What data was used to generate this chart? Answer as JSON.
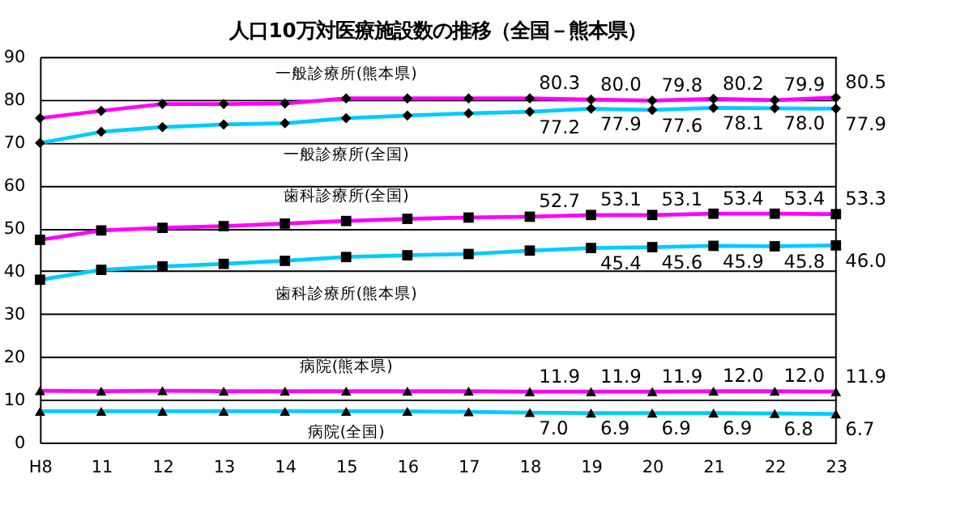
{
  "chart_data": {
    "type": "line",
    "title": "人口10万対医療施設数の推移（全国－熊本県）",
    "categories": [
      "H8",
      "11",
      "12",
      "13",
      "14",
      "15",
      "16",
      "17",
      "18",
      "19",
      "20",
      "21",
      "22",
      "23"
    ],
    "ylim": [
      0,
      90
    ],
    "yticks": [
      0,
      10,
      20,
      30,
      40,
      50,
      60,
      70,
      80,
      90
    ],
    "grid": "y",
    "legend": false,
    "line_style": "solid",
    "series": [
      {
        "name": "一般診療所(熊本県)",
        "color": "#ff00ff",
        "marker": "diamond",
        "values": [
          75.7,
          77.4,
          79.0,
          79.0,
          79.1,
          80.3,
          80.3,
          80.3,
          80.3,
          80.0,
          79.8,
          80.2,
          79.9,
          80.5
        ],
        "value_labels": [
          null,
          null,
          null,
          null,
          null,
          null,
          null,
          null,
          "80.3",
          "80.0",
          "79.8",
          "80.2",
          "79.9",
          "80.5"
        ]
      },
      {
        "name": "一般診療所(全国)",
        "color": "#00ccff",
        "marker": "diamond",
        "values": [
          69.9,
          72.5,
          73.6,
          74.2,
          74.5,
          75.7,
          76.3,
          76.8,
          77.2,
          77.9,
          77.6,
          78.1,
          78.0,
          77.9
        ],
        "value_labels": [
          null,
          null,
          null,
          null,
          null,
          null,
          null,
          null,
          "77.2",
          "77.9",
          "77.6",
          "78.1",
          "78.0",
          "77.9"
        ]
      },
      {
        "name": "歯科診療所(全国)",
        "color": "#ff00ff",
        "marker": "square",
        "values": [
          47.3,
          49.5,
          50.1,
          50.5,
          51.1,
          51.7,
          52.2,
          52.5,
          52.7,
          53.1,
          53.1,
          53.4,
          53.4,
          53.3
        ],
        "value_labels": [
          null,
          null,
          null,
          null,
          null,
          null,
          null,
          null,
          "52.7",
          "53.1",
          "53.1",
          "53.4",
          "53.4",
          "53.3"
        ]
      },
      {
        "name": "歯科診療所(熊本県)",
        "color": "#00ccff",
        "marker": "square",
        "values": [
          38.0,
          40.3,
          41.1,
          41.7,
          42.4,
          43.3,
          43.7,
          44.0,
          44.8,
          45.4,
          45.6,
          45.9,
          45.8,
          46.0
        ],
        "value_labels": [
          null,
          null,
          null,
          null,
          null,
          null,
          null,
          null,
          null,
          "45.4",
          "45.6",
          "45.9",
          "45.8",
          "46.0"
        ]
      },
      {
        "name": "病院(熊本県)",
        "color": "#ff00ff",
        "marker": "triangle",
        "values": [
          12.1,
          12.0,
          12.1,
          12.0,
          12.0,
          12.0,
          12.0,
          12.0,
          11.9,
          11.9,
          11.9,
          12.0,
          12.0,
          11.9
        ],
        "value_labels": [
          null,
          null,
          null,
          null,
          null,
          null,
          null,
          null,
          "11.9",
          "11.9",
          "11.9",
          "12.0",
          "12.0",
          "11.9"
        ]
      },
      {
        "name": "病院(全国)",
        "color": "#00ccff",
        "marker": "triangle",
        "values": [
          7.3,
          7.3,
          7.3,
          7.3,
          7.3,
          7.3,
          7.3,
          7.2,
          7.0,
          6.9,
          6.9,
          6.9,
          6.8,
          6.7
        ],
        "value_labels": [
          null,
          null,
          null,
          null,
          null,
          null,
          null,
          null,
          "7.0",
          "6.9",
          "6.9",
          "6.9",
          "6.8",
          "6.7"
        ]
      }
    ]
  }
}
